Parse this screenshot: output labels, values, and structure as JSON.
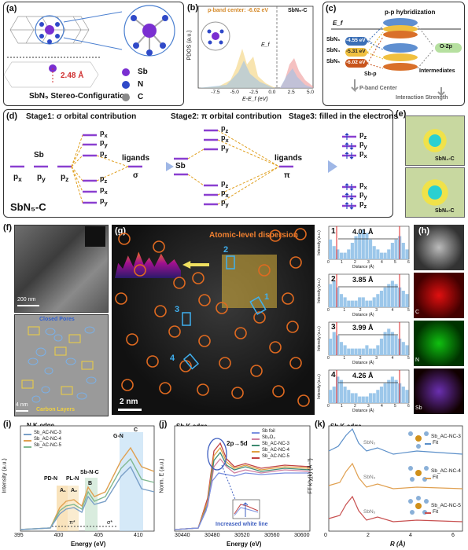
{
  "panel_a": {
    "label": "(a)",
    "legend": [
      "Sb",
      "N",
      "C"
    ],
    "legend_colors": [
      "#7a2fd1",
      "#2f49c8",
      "#8a8a8a"
    ],
    "bond_length": "2.48 Å",
    "caption": "SbN₅ Stereo-Configuration"
  },
  "panel_b": {
    "label": "(b)",
    "center": "p-band center: -6.02 eV",
    "sample": "SbN₅-C",
    "ylabel": "PDOS (a.u.)",
    "xlabel": "E-E_f (eV)",
    "ef": "E_f",
    "xticks": [
      "-7.5",
      "-5.0",
      "-2.5",
      "0.0",
      "2.5",
      "5.0"
    ],
    "xrange": [
      -10,
      5
    ]
  },
  "panel_c": {
    "label": "(c)",
    "title": "p-p hybridization",
    "ef": "E_f",
    "levels": [
      {
        "name": "SbN₃",
        "value": "-4.55 eV",
        "color": "#3b6fb6"
      },
      {
        "name": "SbN₄",
        "value": "-5.31 eV",
        "color": "#e0b020"
      },
      {
        "name": "SbN₅",
        "value": "-6.02 eV",
        "color": "#c8541c"
      }
    ],
    "o2p": "O-2p",
    "intermediates": "Intermediates",
    "sbp": "Sb-p",
    "axis1": "P-band Center",
    "axis2": "Interaction Strength"
  },
  "panel_d": {
    "label": "(d)",
    "stage1": "Stage1: σ orbital contribution",
    "stage2": "Stage2: π orbital contribution",
    "stage3": "Stage3: filled in the electrons",
    "sb": "Sb",
    "atomic": [
      "p",
      "p",
      "p"
    ],
    "atomic_sub": [
      "x",
      "y",
      "z"
    ],
    "ligands_sigma": "ligands",
    "sigma": "σ",
    "ligands_pi": "ligands",
    "pi": "π",
    "sb2": "Sb",
    "left_up": [
      "p",
      "p",
      "p"
    ],
    "left_up_sub": [
      "x",
      "y",
      "z"
    ],
    "left_down": [
      "p",
      "p",
      "p"
    ],
    "left_down_sub": [
      "z",
      "x",
      "y"
    ],
    "mid_up": [
      "p",
      "p",
      "p"
    ],
    "mid_up_sub": [
      "z",
      "x",
      "y"
    ],
    "mid_down": [
      "p",
      "p",
      "p"
    ],
    "mid_down_sub": [
      "z",
      "x",
      "y"
    ],
    "right_up": [
      "p",
      "p",
      "p"
    ],
    "right_up_sub": [
      "z",
      "y",
      "x"
    ],
    "right_down": [
      "p",
      "p",
      "p"
    ],
    "right_down_sub": [
      "x",
      "y",
      "z"
    ],
    "name": "SbN₅-C"
  },
  "panel_e": {
    "label": "(e)",
    "top": "SbN₄-C",
    "bottom": "SbN₅-C"
  },
  "panel_f": {
    "label": "(f)",
    "scale1": "200 nm",
    "closed_pores": "Closed Pores",
    "carbon_layers": "Carbon Layers",
    "scale2": "4 nm"
  },
  "panel_g": {
    "label": "(g)",
    "title": "Atomic-level dispersion",
    "markers": [
      "1",
      "2",
      "3",
      "4"
    ],
    "scale": "2 nm"
  },
  "profiles": {
    "ylabel": "Intensity (a.u.)",
    "xlabel": "Distance (Å)",
    "items": [
      {
        "idx": "1",
        "dist": "4.01 Å",
        "xticks": [
          "0",
          "1",
          "2",
          "3",
          "4",
          "5",
          "6"
        ]
      },
      {
        "idx": "2",
        "dist": "3.85 Å",
        "xticks": [
          "0",
          "1",
          "2",
          "3",
          "4",
          "5"
        ]
      },
      {
        "idx": "3",
        "dist": "3.99 Å",
        "xticks": [
          "0",
          "1",
          "2",
          "3",
          "4",
          "5"
        ]
      },
      {
        "idx": "4",
        "dist": "4.26 Å",
        "xticks": [
          "0",
          "1",
          "2",
          "3",
          "4",
          "5",
          "6"
        ]
      }
    ]
  },
  "panel_h": {
    "label": "(h)",
    "maps": [
      "C",
      "N",
      "Sb"
    ],
    "colors": [
      "#e01010",
      "#10c010",
      "#8a3fd0"
    ]
  },
  "panel_i": {
    "label": "(i)",
    "title": "N K-edge",
    "legend": [
      "Sb_AC-NC-3",
      "Sb_AC-NC-4",
      "Sb_AC-NC-5"
    ],
    "legend_colors": [
      "#7aa0c8",
      "#e0a050",
      "#80b890"
    ],
    "annot": [
      "PD-N",
      "A₁",
      "PL-N",
      "A₂",
      "Sb-N-C",
      "B",
      "G-N",
      "C",
      "π*",
      "σ*"
    ],
    "ylabel": "Intensity (a.u.)",
    "xlabel": "Energy (eV)",
    "xticks": [
      "395",
      "400",
      "405",
      "410"
    ]
  },
  "panel_j": {
    "label": "(j)",
    "title": "Sb K-edge",
    "legend": [
      "Sb foil",
      "Sb₂O₃",
      "Sb_AC-NC-3",
      "Sb_AC-NC-4",
      "Sb_AC-NC-5"
    ],
    "legend_colors": [
      "#7a90e0",
      "#d080a0",
      "#3d8a70",
      "#e0a040",
      "#c04040"
    ],
    "annot": "2p→5d",
    "annot2": "Increased white line",
    "ylabel": "Norm. E (a.u.)",
    "xlabel": "Energy (eV)",
    "xticks": [
      "30440",
      "30480",
      "30520",
      "30560",
      "30600"
    ]
  },
  "panel_k": {
    "label": "(k)",
    "title": "Sb K-edge",
    "traces": [
      {
        "name": "Sb_AC-NC-3",
        "sub": "SbN₃",
        "fit": "Fit",
        "color": "#5b8fc9"
      },
      {
        "name": "Sb_AC-NC-4",
        "sub": "SbN₄",
        "fit": "Fit",
        "color": "#e0a050"
      },
      {
        "name": "Sb_AC-NC-5",
        "sub": "SbN₅",
        "fit": "Fit",
        "color": "#c85050"
      }
    ],
    "ylabel": "FT k³χ(k) (Å⁻³)",
    "xlabel": "R (Å)",
    "xticks": [
      "0",
      "2",
      "4",
      "6"
    ]
  }
}
